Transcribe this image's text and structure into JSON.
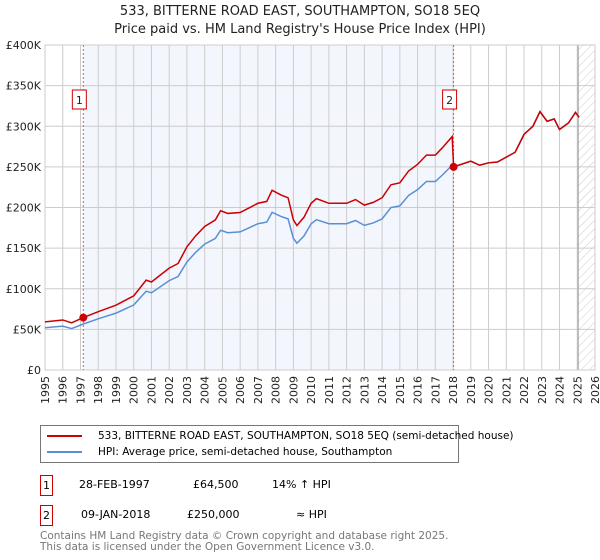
{
  "title_line1": "533, BITTERNE ROAD EAST, SOUTHAMPTON, SO18 5EQ",
  "title_line2": "Price paid vs. HM Land Registry's House Price Index (HPI)",
  "chart_data": {
    "type": "line",
    "xlim": [
      1995,
      2026
    ],
    "ylim": [
      0,
      400000
    ],
    "y_ticks": [
      0,
      50000,
      100000,
      150000,
      200000,
      250000,
      300000,
      350000,
      400000
    ],
    "y_tick_labels": [
      "£0",
      "£50K",
      "£100K",
      "£150K",
      "£200K",
      "£250K",
      "£300K",
      "£350K",
      "£400K"
    ],
    "x_ticks": [
      "1995",
      "1996",
      "1997",
      "1998",
      "1999",
      "2000",
      "2001",
      "2002",
      "2003",
      "2004",
      "2005",
      "2006",
      "2007",
      "2008",
      "2009",
      "2010",
      "2011",
      "2012",
      "2013",
      "2014",
      "2015",
      "2016",
      "2017",
      "2018",
      "2019",
      "2020",
      "2021",
      "2022",
      "2023",
      "2024",
      "2025",
      "2026"
    ],
    "grid": true,
    "shaded_period": [
      1997.16,
      2018.03
    ],
    "forecast_hatch_from": 2025.05,
    "x": [
      1995,
      1996,
      1996.5,
      1997.16,
      1998,
      1999,
      2000,
      2000.7,
      2001,
      2002,
      2002.5,
      2003,
      2003.5,
      2004,
      2004.6,
      2004.9,
      2005.3,
      2006,
      2006.5,
      2007,
      2007.5,
      2007.8,
      2008.3,
      2008.7,
      2009.0,
      2009.2,
      2009.6,
      2010.0,
      2010.3,
      2011,
      2012,
      2012.5,
      2013,
      2013.5,
      2014,
      2014.5,
      2015,
      2015.5,
      2016,
      2016.5,
      2017,
      2017.4,
      2017.95,
      2018.03,
      2019,
      2019.5,
      2020,
      2020.5,
      2021,
      2021.5,
      2022,
      2022.5,
      2022.9,
      2023.3,
      2023.7,
      2024,
      2024.5,
      2024.9,
      2025.1
    ],
    "series": [
      {
        "name": "533, BITTERNE ROAD EAST, SOUTHAMPTON, SO18 5EQ (semi-detached house)",
        "color": "#cc0000",
        "values": [
          59300,
          61600,
          58100,
          64500,
          71800,
          79800,
          91200,
          110600,
          108300,
          125400,
          131100,
          151600,
          165300,
          176700,
          184700,
          196100,
          192700,
          193800,
          199500,
          205200,
          207500,
          221200,
          215500,
          212000,
          184700,
          177800,
          188100,
          205200,
          210900,
          205200,
          205200,
          209800,
          202900,
          206300,
          212000,
          228000,
          230300,
          245100,
          253100,
          264500,
          264500,
          273600,
          287300,
          250000,
          257000,
          252000,
          255000,
          256000,
          262000,
          268000,
          290000,
          300000,
          318000,
          306000,
          309000,
          296000,
          304000,
          317000,
          311000
        ]
      },
      {
        "name": "HPI: Average price, semi-detached house, Southampton",
        "color": "#5b8fd4",
        "values": [
          52000,
          54000,
          51000,
          56600,
          63000,
          70000,
          80000,
          97000,
          95000,
          110000,
          115000,
          133000,
          145000,
          155000,
          162000,
          172000,
          169000,
          170000,
          175000,
          180000,
          182000,
          194000,
          189000,
          186000,
          162000,
          156000,
          165000,
          180000,
          185000,
          180000,
          180000,
          184000,
          178000,
          181000,
          186000,
          200000,
          202000,
          215000,
          222000,
          232000,
          232000,
          240000,
          252000,
          250000,
          257000,
          252000,
          255000,
          256000,
          262000,
          268000,
          290000,
          300000,
          318000,
          306000,
          309000,
          296000,
          304000,
          317000,
          311000
        ]
      }
    ],
    "annotations": [
      {
        "label": "1",
        "x": 1997.16,
        "y": 64500
      },
      {
        "label": "2",
        "x": 2018.03,
        "y": 250000
      }
    ]
  },
  "legend": [
    {
      "label": "533, BITTERNE ROAD EAST, SOUTHAMPTON, SO18 5EQ (semi-detached house)",
      "color": "#cc0000"
    },
    {
      "label": "HPI: Average price, semi-detached house, Southampton",
      "color": "#5b8fd4"
    }
  ],
  "transactions": [
    {
      "num": "1",
      "date": "28-FEB-1997",
      "price": "£64,500",
      "hpi": "14% ↑ HPI"
    },
    {
      "num": "2",
      "date": "09-JAN-2018",
      "price": "£250,000",
      "hpi": "≈ HPI"
    }
  ],
  "footer_line1": "Contains HM Land Registry data © Crown copyright and database right 2025.",
  "footer_line2": "This data is licensed under the Open Government Licence v3.0."
}
